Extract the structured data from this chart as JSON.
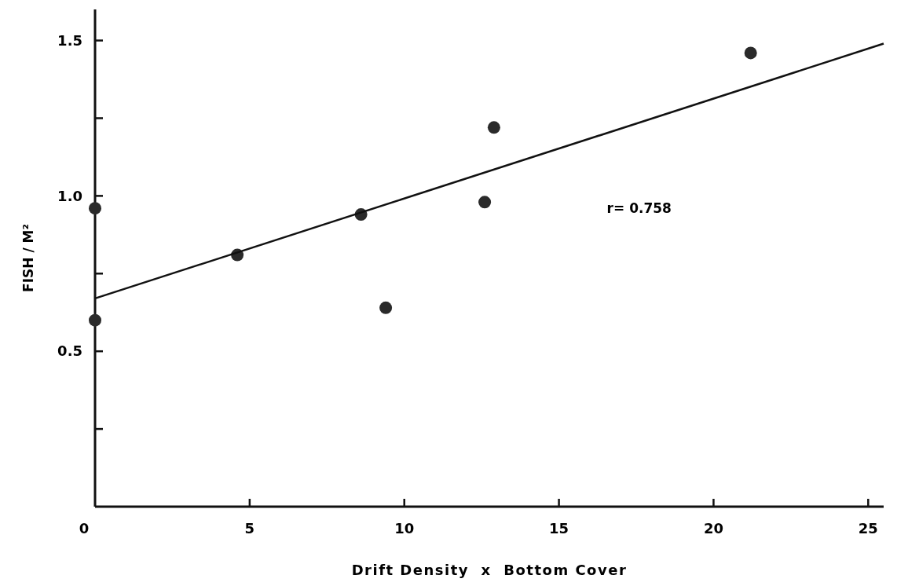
{
  "chart_data": {
    "type": "scatter",
    "xlabel": "Drift Density  x  Bottom Cover",
    "ylabel": "FISH / M²",
    "xlim": [
      0,
      25.5
    ],
    "ylim": [
      0,
      1.6
    ],
    "xticks": [
      0,
      5,
      10,
      15,
      20,
      25
    ],
    "yticks": [
      {
        "value": 0.25,
        "label": null
      },
      0.5,
      {
        "value": 0.75,
        "label": null
      },
      {
        "value": 1.0,
        "label": "1.0"
      },
      {
        "value": 1.25,
        "label": null
      },
      1.5
    ],
    "marker": "circle",
    "grid": false,
    "annotations": [
      "r= 0.758"
    ],
    "series": [
      {
        "color": "#2a2a2a",
        "x": [
          0,
          0,
          4.6,
          8.6,
          9.4,
          12.6,
          12.9,
          21.2
        ],
        "values": [
          0.96,
          0.6,
          0.81,
          0.94,
          0.64,
          0.98,
          1.22,
          1.46
        ]
      },
      {
        "type": "line",
        "color": "#111111",
        "line_style": "solid",
        "marker": "none",
        "x": [
          0,
          25.5
        ],
        "values": [
          0.67,
          1.49
        ]
      }
    ]
  }
}
